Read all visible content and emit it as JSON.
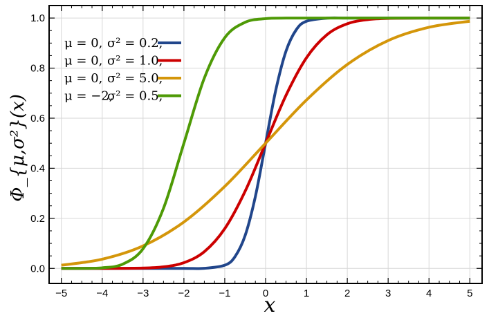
{
  "chart_data": {
    "type": "line",
    "title": "",
    "xlabel": "x",
    "ylabel": "Φ_{μ,σ²}(x)",
    "xlim": [
      -5.3,
      5.3
    ],
    "ylim": [
      -0.06,
      1.05
    ],
    "xticks": [
      -5,
      -4,
      -3,
      -2,
      -1,
      0,
      1,
      2,
      3,
      4,
      5
    ],
    "xtick_labels": [
      "−5",
      "−4",
      "−3",
      "−2",
      "−1",
      "0",
      "1",
      "2",
      "3",
      "4",
      "5"
    ],
    "yticks": [
      0.0,
      0.2,
      0.4,
      0.6,
      0.8,
      1.0
    ],
    "ytick_labels": [
      "0.0",
      "0.2",
      "0.4",
      "0.6",
      "0.8",
      "1.0"
    ],
    "grid": true,
    "legend_placement": "top-left",
    "series": [
      {
        "name": "μ = 0,   σ² = 0.2,",
        "mu_text": "μ = 0,",
        "sigma_text": "σ² = 0.2,",
        "color": "#21468b",
        "x": [
          -5,
          -4,
          -3,
          -2,
          -1.5,
          -1,
          -0.75,
          -0.5,
          -0.25,
          0,
          0.25,
          0.5,
          0.75,
          1,
          1.5,
          2,
          3,
          4,
          5
        ],
        "y": [
          0.0,
          0.0,
          0.0,
          0.0,
          0.0004,
          0.0127,
          0.0468,
          0.1318,
          0.2874,
          0.5,
          0.7126,
          0.8682,
          0.9532,
          0.9873,
          0.9996,
          1.0,
          1.0,
          1.0,
          1.0
        ]
      },
      {
        "name": "μ = 0,   σ² = 1.0,",
        "mu_text": "μ = 0,",
        "sigma_text": "σ² = 1.0,",
        "color": "#cc0000",
        "x": [
          -5,
          -4,
          -3,
          -2.5,
          -2,
          -1.5,
          -1,
          -0.5,
          0,
          0.5,
          1,
          1.5,
          2,
          2.5,
          3,
          4,
          5
        ],
        "y": [
          0.0,
          0.0,
          0.0013,
          0.0062,
          0.0228,
          0.0668,
          0.1587,
          0.3085,
          0.5,
          0.6915,
          0.8413,
          0.9332,
          0.9772,
          0.9938,
          0.9987,
          1.0,
          1.0
        ]
      },
      {
        "name": "μ = 0,   σ² = 5.0,",
        "mu_text": "μ = 0,",
        "sigma_text": "σ² = 5.0,",
        "color": "#d4960a",
        "x": [
          -5,
          -4,
          -3,
          -2,
          -1,
          0,
          1,
          2,
          3,
          4,
          5
        ],
        "y": [
          0.0127,
          0.0368,
          0.0899,
          0.1855,
          0.3274,
          0.5,
          0.6726,
          0.8145,
          0.9101,
          0.9632,
          0.9873
        ]
      },
      {
        "name": "μ = −2, σ² = 0.5,",
        "mu_text": "μ = −2,",
        "sigma_text": "σ² = 0.5,",
        "color": "#4e9a06",
        "x": [
          -5,
          -4.5,
          -4,
          -3.5,
          -3,
          -2.5,
          -2,
          -1.5,
          -1,
          -0.5,
          0,
          0.5,
          1,
          2,
          3,
          4,
          5
        ],
        "y": [
          0.0,
          0.0002,
          0.0023,
          0.0169,
          0.0786,
          0.2398,
          0.5,
          0.7602,
          0.9214,
          0.9831,
          0.9977,
          0.9998,
          1.0,
          1.0,
          1.0,
          1.0,
          1.0
        ]
      }
    ]
  }
}
